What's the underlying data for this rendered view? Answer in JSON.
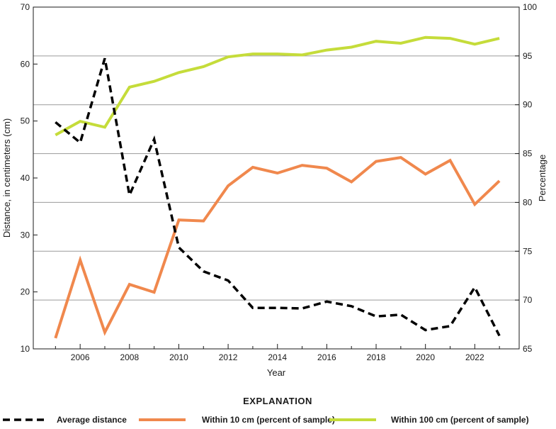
{
  "chart_data": {
    "type": "line",
    "x": [
      2005,
      2006,
      2007,
      2008,
      2009,
      2010,
      2011,
      2012,
      2013,
      2014,
      2015,
      2016,
      2017,
      2018,
      2019,
      2020,
      2021,
      2022,
      2023
    ],
    "xlabel": "Year",
    "xlim": [
      2004.1,
      2023.8
    ],
    "x_ticks": [
      "2006",
      "2008",
      "2010",
      "2012",
      "2014",
      "2016",
      "2018",
      "2020",
      "2022"
    ],
    "y_left": {
      "label": "Distance, in centimeters (cm)",
      "lim": [
        10,
        70
      ],
      "ticks": [
        "10",
        "20",
        "30",
        "40",
        "50",
        "60",
        "70"
      ]
    },
    "y_right": {
      "label": "Percentage",
      "lim": [
        65,
        100
      ],
      "ticks": [
        "65",
        "70",
        "75",
        "80",
        "85",
        "90",
        "95",
        "100"
      ]
    },
    "grid": "horizontal lines at right-axis ticks",
    "legend_title": "EXPLANATION",
    "legend_position": "bottom",
    "series": [
      {
        "name": "Average distance",
        "axis": "left",
        "style": "dashed",
        "color": "#000000",
        "values": [
          49.8,
          46.2,
          61.0,
          37.0,
          46.8,
          27.8,
          23.6,
          22.0,
          17.2,
          17.2,
          17.1,
          18.3,
          17.5,
          15.7,
          16.0,
          13.3,
          14.0,
          20.8,
          12.3
        ]
      },
      {
        "name": "Within 10 cm (percent of sample)",
        "axis": "right",
        "style": "solid",
        "color": "#f0884d",
        "values": [
          66.1,
          74.1,
          66.7,
          71.6,
          70.8,
          78.2,
          78.1,
          81.7,
          83.6,
          83.0,
          83.8,
          83.5,
          82.1,
          84.2,
          84.6,
          82.9,
          84.3,
          79.8,
          82.2
        ]
      },
      {
        "name": "Within 100 cm (percent of sample)",
        "axis": "right",
        "style": "solid",
        "color": "#c5dc3a",
        "values": [
          86.9,
          88.3,
          87.7,
          91.8,
          92.4,
          93.3,
          93.9,
          94.9,
          95.2,
          95.2,
          95.1,
          95.6,
          95.9,
          96.5,
          96.3,
          96.9,
          96.8,
          96.2,
          96.8
        ]
      }
    ]
  }
}
